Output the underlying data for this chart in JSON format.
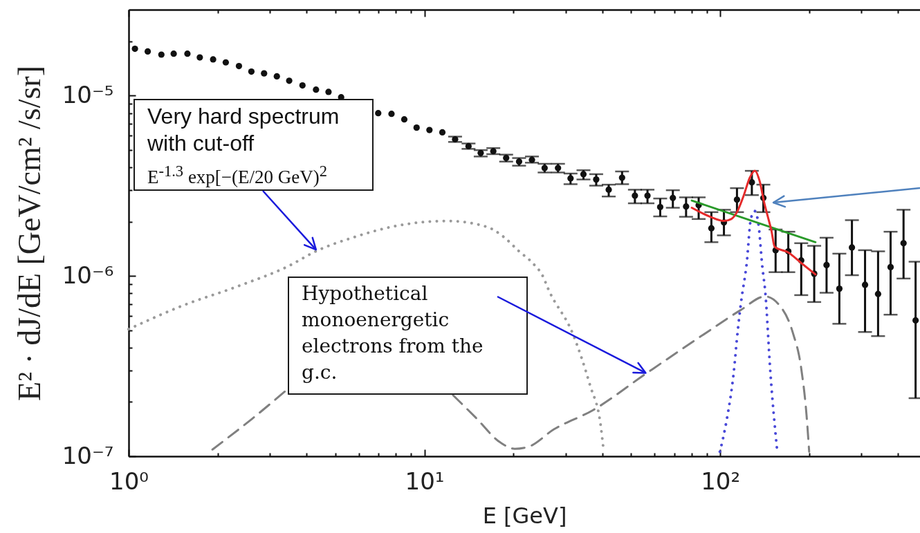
{
  "chart_data": {
    "type": "scatter",
    "xlabel": "E [GeV]",
    "ylabel": "E² · dJ/dE [GeV/cm² /s/sr]",
    "log": "xy",
    "xlim": [
      1,
      474
    ],
    "ylim": [
      1e-07,
      3e-05
    ],
    "xticks": [
      {
        "value": 1,
        "label": "10⁰"
      },
      {
        "value": 2,
        "label": null
      },
      {
        "value": 3,
        "label": null
      },
      {
        "value": 4,
        "label": null
      },
      {
        "value": 5,
        "label": null
      },
      {
        "value": 6,
        "label": null
      },
      {
        "value": 7,
        "label": null
      },
      {
        "value": 8,
        "label": null
      },
      {
        "value": 9,
        "label": null
      },
      {
        "value": 10,
        "label": "10¹"
      },
      {
        "value": 20,
        "label": null
      },
      {
        "value": 30,
        "label": null
      },
      {
        "value": 40,
        "label": null
      },
      {
        "value": 50,
        "label": null
      },
      {
        "value": 60,
        "label": null
      },
      {
        "value": 70,
        "label": null
      },
      {
        "value": 80,
        "label": null
      },
      {
        "value": 90,
        "label": null
      },
      {
        "value": 100,
        "label": "10²"
      },
      {
        "value": 200,
        "label": null
      },
      {
        "value": 300,
        "label": null
      },
      {
        "value": 400,
        "label": null
      }
    ],
    "yticks": [
      {
        "value": 1e-07,
        "label": "10⁻⁷"
      },
      {
        "value": 2e-07,
        "label": null
      },
      {
        "value": 3e-07,
        "label": null
      },
      {
        "value": 4e-07,
        "label": null
      },
      {
        "value": 5e-07,
        "label": null
      },
      {
        "value": 6e-07,
        "label": null
      },
      {
        "value": 7e-07,
        "label": null
      },
      {
        "value": 8e-07,
        "label": null
      },
      {
        "value": 9e-07,
        "label": null
      },
      {
        "value": 1e-06,
        "label": "10⁻⁶"
      },
      {
        "value": 2e-06,
        "label": null
      },
      {
        "value": 3e-06,
        "label": null
      },
      {
        "value": 4e-06,
        "label": null
      },
      {
        "value": 5e-06,
        "label": null
      },
      {
        "value": 6e-06,
        "label": null
      },
      {
        "value": 7e-06,
        "label": null
      },
      {
        "value": 8e-06,
        "label": null
      },
      {
        "value": 9e-06,
        "label": null
      },
      {
        "value": 1e-05,
        "label": "10⁻⁵"
      },
      {
        "value": 2e-05,
        "label": null
      }
    ],
    "series": [
      {
        "type": "line",
        "color": "#9a9a9a",
        "line_style": "dotted",
        "x": [
          1,
          1.53,
          2.31,
          3.49,
          4.29,
          5.84,
          7.95,
          12,
          16.3,
          18.6,
          20.9,
          23.1,
          25.2,
          26.2,
          31.9,
          36.3,
          39.5,
          40.4
        ],
        "values": [
          5.07e-07,
          6.87e-07,
          8.7e-07,
          1.14e-06,
          1.37e-06,
          1.65e-06,
          1.89e-06,
          2.02e-06,
          1.87e-06,
          1.64e-06,
          1.37e-06,
          1.19e-06,
          9.9e-07,
          8.5e-07,
          4.69e-07,
          2.48e-07,
          1.46e-07,
          1.06e-07
        ]
      },
      {
        "type": "line",
        "color": "#808080",
        "line_style": "dashed",
        "x": [
          1.92,
          2.61,
          3.42,
          6,
          12.5,
          14.8,
          18.1,
          20.2,
          22.5,
          27.4,
          37.1,
          55.9,
          90,
          117,
          142,
          158,
          176,
          188,
          196,
          200
        ],
        "values": [
          1.09e-07,
          1.61e-07,
          2.33e-07,
          null,
          2.18e-07,
          1.66e-07,
          1.19e-07,
          1.1e-07,
          1.13e-07,
          1.41e-07,
          1.8e-07,
          2.86e-07,
          4.86e-07,
          6.45e-07,
          7.7e-07,
          6.93e-07,
          4.86e-07,
          3.07e-07,
          1.68e-07,
          1.06e-07
        ]
      },
      {
        "type": "line",
        "color": "#4848d8",
        "line_style": "dotted",
        "x": [
          99.8,
          105,
          111,
          115,
          118,
          123,
          127,
          131,
          135,
          139,
          142,
          148,
          156
        ],
        "values": [
          1.06e-07,
          1.56e-07,
          2.86e-07,
          5.19e-07,
          7.39e-07,
          1.18e-06,
          2.07e-06,
          2.29e-06,
          1.89e-06,
          1.11e-06,
          8.27e-07,
          2.86e-07,
          1.06e-07
        ]
      },
      {
        "color": "#111111",
        "marker": "circle",
        "x": [
          1.05,
          1.16,
          1.29,
          1.42,
          1.58,
          1.74,
          1.93,
          2.13,
          2.36,
          2.6,
          2.87,
          3.17,
          3.49,
          3.87,
          4.3,
          4.74,
          5.23,
          6.98,
          7.74,
          8.55,
          9.41,
          10.4,
          11.5,
          12.7,
          14.1,
          15.5,
          17.1,
          18.9,
          20.9,
          23.1,
          25.5,
          28.3,
          31.2,
          34.5,
          38.1,
          42,
          46.6,
          51.5,
          56.8,
          62.7,
          69.2,
          76.7,
          84.6,
          93.4,
          103,
          114,
          128,
          140,
          154,
          170,
          188,
          208,
          229,
          253,
          279,
          309,
          342,
          377,
          417,
          458
        ],
        "values": [
          1.82e-05,
          1.76e-05,
          1.69e-05,
          1.71e-05,
          1.71e-05,
          1.63e-05,
          1.59e-05,
          1.53e-05,
          1.46e-05,
          1.36e-05,
          1.33e-05,
          1.28e-05,
          1.21e-05,
          1.14e-05,
          1.08e-05,
          1.05e-05,
          9.8e-06,
          8e-06,
          7.93e-06,
          7.39e-06,
          6.65e-06,
          6.45e-06,
          6.26e-06,
          5.73e-06,
          5.25e-06,
          4.81e-06,
          4.92e-06,
          4.51e-06,
          4.31e-06,
          4.41e-06,
          3.97e-06,
          3.97e-06,
          3.48e-06,
          3.67e-06,
          3.43e-06,
          3.01e-06,
          3.51e-06,
          2.79e-06,
          2.79e-06,
          2.41e-06,
          2.71e-06,
          2.43e-06,
          2.47e-06,
          1.84e-06,
          1.98e-06,
          2.65e-06,
          3.31e-06,
          2.71e-06,
          1.39e-06,
          1.37e-06,
          1.22e-06,
          1.03e-06,
          1.15e-06,
          8.5e-07,
          1.44e-06,
          8.94e-07,
          7.95e-07,
          1.12e-06,
          1.52e-06,
          5.67e-07
        ],
        "errors": [
          null,
          null,
          null,
          null,
          null,
          null,
          null,
          null,
          null,
          null,
          null,
          null,
          null,
          null,
          null,
          null,
          null,
          null,
          null,
          null,
          null,
          null,
          null,
          [
            5.54e-06,
            5.93e-06
          ],
          [
            5.07e-06,
            5.43e-06
          ],
          [
            4.6e-06,
            4.99e-06
          ],
          [
            4.74e-06,
            5.12e-06
          ],
          [
            4.31e-06,
            4.71e-06
          ],
          [
            4.09e-06,
            4.51e-06
          ],
          [
            4.25e-06,
            4.6e-06
          ],
          [
            3.75e-06,
            4.19e-06
          ],
          [
            3.75e-06,
            4.19e-06
          ],
          [
            3.23e-06,
            3.7e-06
          ],
          [
            3.43e-06,
            3.86e-06
          ],
          [
            3.17e-06,
            3.67e-06
          ],
          [
            2.76e-06,
            3.21e-06
          ],
          [
            3.23e-06,
            3.8e-06
          ],
          [
            2.53e-06,
            3.01e-06
          ],
          [
            2.53e-06,
            3.01e-06
          ],
          [
            2.14e-06,
            2.69e-06
          ],
          [
            2.39e-06,
            2.99e-06
          ],
          [
            2.13e-06,
            2.73e-06
          ],
          [
            2.07e-06,
            2.73e-06
          ],
          [
            1.54e-06,
            2.26e-06
          ],
          [
            1.68e-06,
            2.33e-06
          ],
          [
            2.26e-06,
            3.07e-06
          ],
          [
            2.81e-06,
            3.83e-06
          ],
          [
            2.26e-06,
            3.21e-06
          ],
          [
            1.05e-06,
            1.81e-06
          ],
          [
            1.05e-06,
            1.76e-06
          ],
          [
            7.83e-07,
            1.52e-06
          ],
          [
            7.17e-07,
            1.47e-06
          ],
          [
            8.07e-07,
            1.63e-06
          ],
          [
            5.43e-07,
            1.33e-06
          ],
          [
            1.01e-06,
            2.04e-06
          ],
          [
            4.89e-07,
            1.39e-06
          ],
          [
            4.64e-07,
            1.37e-06
          ],
          [
            6.1e-07,
            1.76e-06
          ],
          [
            9.68e-07,
            2.33e-06
          ],
          [
            2.1e-07,
            1.2e-06
          ]
        ]
      },
      {
        "type": "line",
        "color": "#2a9a2a",
        "line_style": "solid",
        "x": [
          80.2,
          210
        ],
        "values": [
          2.62e-06,
          1.54e-06
        ]
      },
      {
        "type": "line",
        "color": "#e52a2a",
        "line_style": "solid",
        "x": [
          80.2,
          92.6,
          103,
          109,
          114,
          120,
          126,
          131,
          136,
          141,
          145,
          149,
          153,
          170,
          188,
          210
        ],
        "values": [
          2.39e-06,
          2.13e-06,
          2.02e-06,
          2.07e-06,
          2.26e-06,
          2.78e-06,
          3.51e-06,
          3.83e-06,
          3.36e-06,
          2.54e-06,
          2.13e-06,
          1.79e-06,
          1.45e-06,
          1.35e-06,
          1.18e-06,
          1.02e-06
        ]
      }
    ],
    "annotations": [
      {
        "text": "Very hard spectrum with cut-off\nE$^{-1.3}$ exp[−(E/20 GeV)$^{2}$",
        "x": 4.3,
        "y": 1.4e-06
      },
      {
        "text": "Hypothetical monoenergetic electrons from the g.c.",
        "x": 56,
        "y": 2.9e-07
      }
    ]
  }
}
